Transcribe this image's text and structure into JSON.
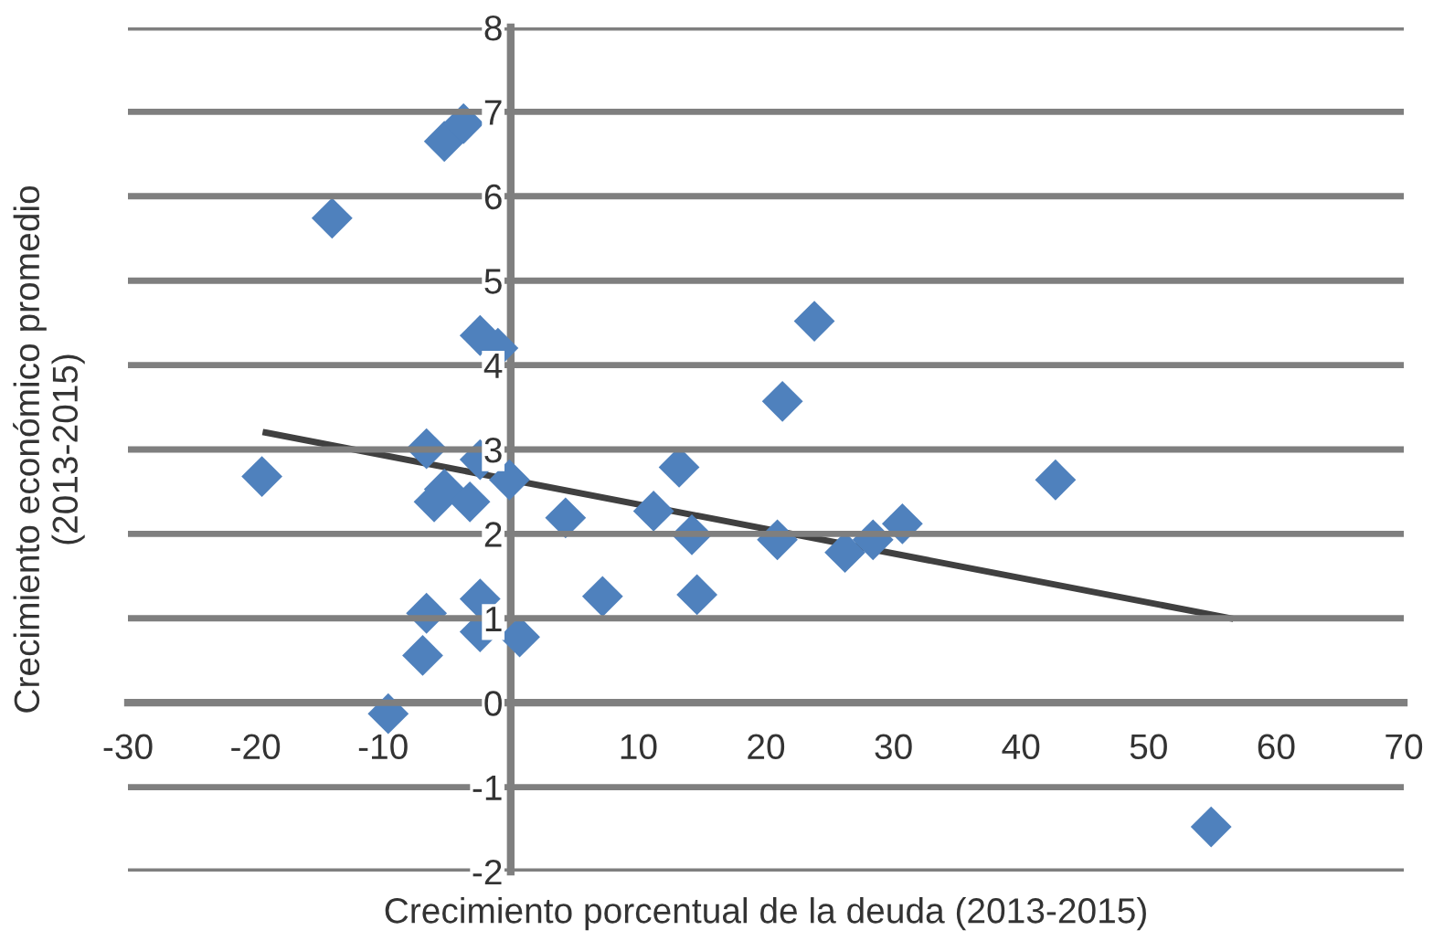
{
  "chart_data": {
    "type": "scatter",
    "xlabel": "Crecimiento porcentual de la deuda (2013-2015)",
    "ylabel": "Crecimiento económico promedio\n(2013-2015)",
    "xlim": [
      -30,
      70
    ],
    "xticks": [
      -30,
      -20,
      -10,
      10,
      20,
      30,
      40,
      50,
      60,
      70
    ],
    "ylim": [
      -2,
      8
    ],
    "yticks": [
      -2,
      -1,
      0,
      1,
      2,
      3,
      4,
      5,
      6,
      7,
      8
    ],
    "grid": "y",
    "marker": "diamond",
    "legend": false,
    "series": [
      {
        "color": "#4f81bd",
        "x": [
          -5.2,
          -3.7,
          -14.0,
          -2.4,
          -1.0,
          -19.5,
          -6.6,
          -2.4,
          -5.2,
          -6.0,
          -3.2,
          -0.1,
          4.3,
          11.2,
          13.2,
          14.2,
          7.2,
          14.6,
          -2.4,
          -6.6,
          -2.4,
          0.7,
          -6.9,
          -9.6,
          23.8,
          21.3,
          42.7,
          30.7,
          28.4,
          26.2,
          20.9,
          54.9
        ],
        "values": [
          6.65,
          6.86,
          5.74,
          4.35,
          4.2,
          2.68,
          3.01,
          2.88,
          2.53,
          2.38,
          2.38,
          2.64,
          2.19,
          2.27,
          2.79,
          1.99,
          1.26,
          1.28,
          1.23,
          1.06,
          0.84,
          0.78,
          0.56,
          -0.13,
          4.52,
          3.57,
          2.64,
          2.12,
          1.93,
          1.78,
          1.93,
          -1.47
        ]
      },
      {
        "type": "line",
        "color": "#404040",
        "x": [
          -19.2,
          56.4
        ],
        "values": [
          3.2,
          1.0
        ],
        "marker": "none"
      }
    ]
  }
}
